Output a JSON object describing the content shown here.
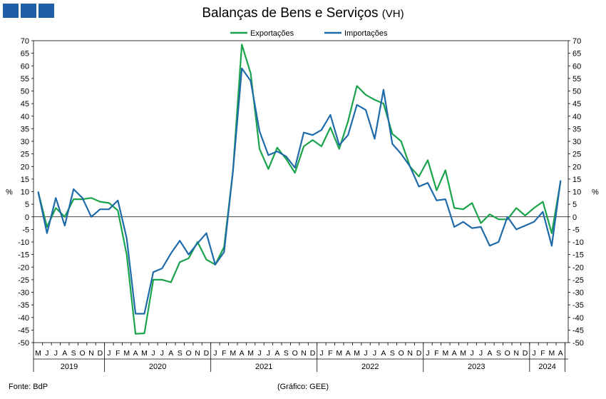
{
  "header": {
    "title": "Balanças de Bens e Serviços",
    "subtitle": "(VH)"
  },
  "footer": {
    "source": "Fonte: BdP",
    "credit": "(Gráfico: GEE)"
  },
  "colors": {
    "exports": "#1aa34a",
    "imports": "#1f6aa8",
    "logo": "#1f5fa8"
  },
  "chart_data": {
    "type": "line",
    "ylabel_left": "%",
    "ylabel_right": "%",
    "ylim": [
      -50,
      70
    ],
    "yticks": [
      70,
      65,
      60,
      55,
      50,
      45,
      40,
      35,
      30,
      25,
      20,
      15,
      10,
      5,
      0,
      -5,
      -10,
      -15,
      -20,
      -25,
      -30,
      -35,
      -40,
      -45,
      -50
    ],
    "grid": false,
    "legend_position": "top-center",
    "month_labels": [
      "M",
      "J",
      "J",
      "A",
      "S",
      "O",
      "N",
      "D",
      "J",
      "F",
      "M",
      "A",
      "M",
      "J",
      "J",
      "A",
      "S",
      "O",
      "N",
      "D",
      "J",
      "F",
      "M",
      "A",
      "M",
      "J",
      "J",
      "A",
      "S",
      "O",
      "N",
      "D",
      "J",
      "F",
      "M",
      "A",
      "M",
      "J",
      "J",
      "A",
      "S",
      "O",
      "N",
      "D",
      "J",
      "F",
      "M",
      "A",
      "M",
      "J",
      "J",
      "A",
      "S",
      "O",
      "N",
      "D",
      "J",
      "F",
      "M",
      "A"
    ],
    "year_labels": [
      {
        "label": "2019",
        "start": 0,
        "end": 8
      },
      {
        "label": "2020",
        "start": 8,
        "end": 20
      },
      {
        "label": "2021",
        "start": 20,
        "end": 32
      },
      {
        "label": "2022",
        "start": 32,
        "end": 44
      },
      {
        "label": "2023",
        "start": 44,
        "end": 56
      },
      {
        "label": "2024",
        "start": 56,
        "end": 60
      }
    ],
    "series": [
      {
        "name": "Exportações",
        "values": [
          10,
          -4,
          3.5,
          0,
          7,
          7,
          7.5,
          6,
          5.5,
          2.5,
          -15,
          -46.5,
          -46.3,
          -25,
          -25,
          -26,
          -18,
          -16.5,
          -10,
          -17,
          -19,
          -12,
          18,
          68.5,
          57,
          27,
          19,
          27.5,
          23,
          17.5,
          28,
          30.5,
          28,
          35.5,
          27,
          38,
          52,
          48.5,
          46.5,
          45,
          33,
          30,
          20,
          16,
          22.5,
          10.5,
          18.5,
          3.5,
          3,
          5.5,
          -2.5,
          1,
          -1,
          -1,
          3.5,
          0.5,
          3.5,
          6,
          -6.5,
          14
        ]
      },
      {
        "name": "Importações",
        "values": [
          10,
          -6.5,
          7.5,
          -3.5,
          11,
          7.5,
          0,
          3,
          3,
          6.5,
          -8.5,
          -38.5,
          -38.5,
          -22,
          -20.5,
          -14.5,
          -9.5,
          -15,
          -10.5,
          -6.5,
          -19,
          -14,
          18,
          59,
          54,
          34,
          24.5,
          26,
          24,
          19.5,
          33.5,
          32.5,
          34.5,
          40.5,
          28.5,
          32.5,
          44.5,
          42.5,
          31,
          50.5,
          29,
          25,
          20,
          12,
          13.5,
          6.5,
          7,
          -4,
          -2,
          -4.5,
          -4,
          -11.5,
          -10,
          0,
          -5,
          -3.5,
          -2,
          2,
          -11.5,
          14.5
        ]
      }
    ]
  }
}
